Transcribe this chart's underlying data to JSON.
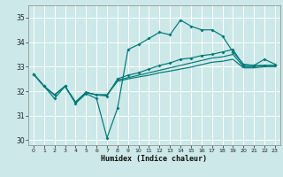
{
  "xlabel": "Humidex (Indice chaleur)",
  "bg_color": "#cce8e8",
  "grid_color": "#ffffff",
  "line_color": "#007878",
  "xlim": [
    -0.5,
    23.5
  ],
  "ylim": [
    29.8,
    35.5
  ],
  "yticks": [
    30,
    31,
    32,
    33,
    34,
    35
  ],
  "xticks": [
    0,
    1,
    2,
    3,
    4,
    5,
    6,
    7,
    8,
    9,
    10,
    11,
    12,
    13,
    14,
    15,
    16,
    17,
    18,
    19,
    20,
    21,
    22,
    23
  ],
  "line1_x": [
    0,
    1,
    2,
    3,
    4,
    5,
    6,
    7,
    8,
    9,
    10,
    11,
    12,
    13,
    14,
    15,
    16,
    17,
    18,
    19,
    20,
    21,
    22,
    23
  ],
  "line1_y": [
    32.7,
    32.2,
    31.7,
    32.2,
    31.5,
    31.9,
    31.7,
    30.1,
    31.3,
    33.7,
    33.9,
    34.15,
    34.4,
    34.3,
    34.9,
    34.65,
    34.5,
    34.5,
    34.25,
    33.6,
    33.1,
    33.05,
    33.3,
    33.1
  ],
  "line2_x": [
    0,
    1,
    2,
    3,
    4,
    5,
    6,
    7,
    8,
    9,
    10,
    11,
    12,
    13,
    14,
    15,
    16,
    17,
    18,
    19,
    20,
    21,
    22,
    23
  ],
  "line2_y": [
    32.7,
    32.2,
    31.85,
    32.2,
    31.55,
    31.95,
    31.85,
    31.8,
    32.5,
    32.65,
    32.75,
    32.9,
    33.05,
    33.15,
    33.3,
    33.35,
    33.45,
    33.5,
    33.6,
    33.7,
    33.05,
    33.05,
    33.05,
    33.05
  ],
  "line3_x": [
    0,
    1,
    2,
    3,
    4,
    5,
    6,
    7,
    8,
    9,
    10,
    11,
    12,
    13,
    14,
    15,
    16,
    17,
    18,
    19,
    20,
    21,
    22,
    23
  ],
  "line3_y": [
    32.7,
    32.2,
    31.85,
    32.2,
    31.55,
    31.95,
    31.85,
    31.85,
    32.45,
    32.55,
    32.65,
    32.75,
    32.85,
    32.95,
    33.05,
    33.15,
    33.25,
    33.35,
    33.4,
    33.5,
    33.0,
    33.0,
    33.05,
    33.05
  ],
  "line4_x": [
    0,
    1,
    2,
    3,
    4,
    5,
    6,
    7,
    8,
    9,
    10,
    11,
    12,
    13,
    14,
    15,
    16,
    17,
    18,
    19,
    20,
    21,
    22,
    23
  ],
  "line4_y": [
    32.7,
    32.2,
    31.85,
    32.2,
    31.55,
    31.95,
    31.85,
    31.85,
    32.4,
    32.5,
    32.58,
    32.65,
    32.75,
    32.82,
    32.9,
    32.98,
    33.08,
    33.18,
    33.22,
    33.3,
    32.95,
    32.95,
    33.0,
    33.0
  ]
}
